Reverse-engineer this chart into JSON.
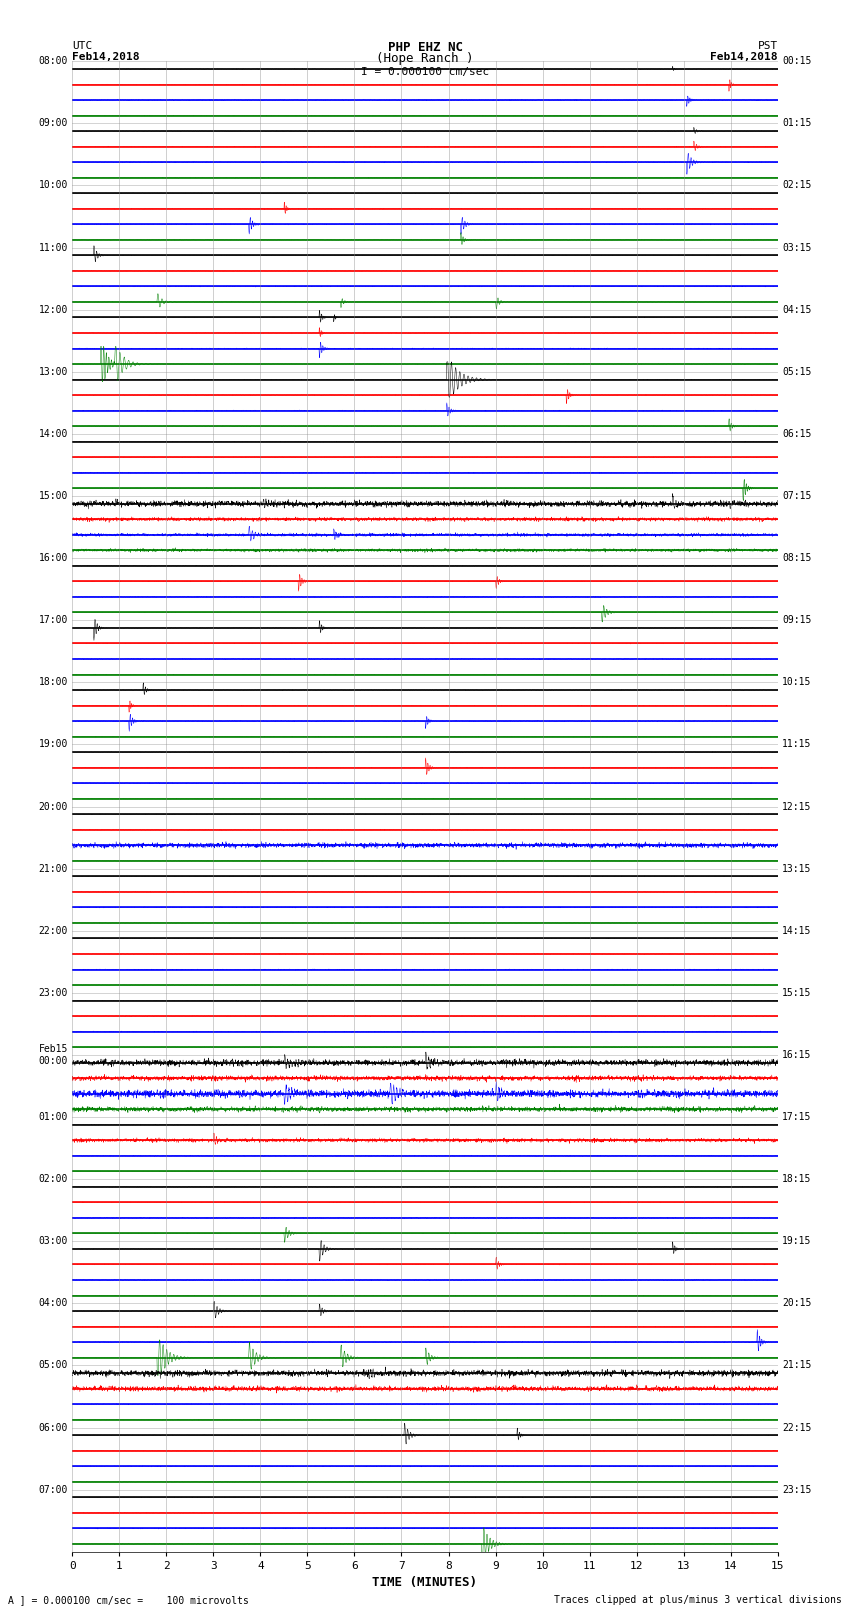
{
  "title_line1": "PHP EHZ NC",
  "title_line2": "(Hope Ranch )",
  "scale_label": "I = 0.000100 cm/sec",
  "utc_label1": "UTC",
  "utc_label2": "Feb14,2018",
  "pst_label1": "PST",
  "pst_label2": "Feb14,2018",
  "bottom_left": "A ] = 0.000100 cm/sec =    100 microvolts",
  "bottom_right": "Traces clipped at plus/minus 3 vertical divisions",
  "xlabel": "TIME (MINUTES)",
  "left_times": [
    "08:00",
    "09:00",
    "10:00",
    "11:00",
    "12:00",
    "13:00",
    "14:00",
    "15:00",
    "16:00",
    "17:00",
    "18:00",
    "19:00",
    "20:00",
    "21:00",
    "22:00",
    "23:00",
    "Feb15\n00:00",
    "01:00",
    "02:00",
    "03:00",
    "04:00",
    "05:00",
    "06:00",
    "07:00"
  ],
  "right_times": [
    "00:15",
    "01:15",
    "02:15",
    "03:15",
    "04:15",
    "05:15",
    "06:15",
    "07:15",
    "08:15",
    "09:15",
    "10:15",
    "11:15",
    "12:15",
    "13:15",
    "14:15",
    "15:15",
    "16:15",
    "17:15",
    "18:15",
    "19:15",
    "20:15",
    "21:15",
    "22:15",
    "23:15"
  ],
  "n_rows": 24,
  "n_traces_per_row": 4,
  "colors": [
    "black",
    "red",
    "blue",
    "green"
  ],
  "minutes": 15,
  "bg_color": "white",
  "clip_level": 3.0,
  "trace_lw": 1.2,
  "signal_lw": 0.5
}
